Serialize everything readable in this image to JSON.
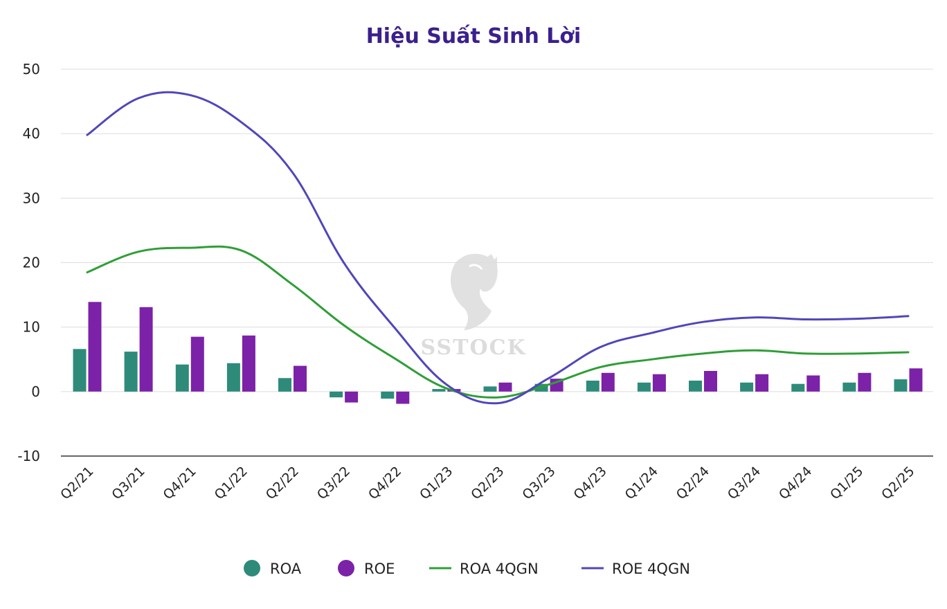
{
  "chart_data": {
    "type": "bar",
    "title": "Hiệu Suất Sinh Lời",
    "categories": [
      "Q2/21",
      "Q3/21",
      "Q4/21",
      "Q1/22",
      "Q2/22",
      "Q3/22",
      "Q4/22",
      "Q1/23",
      "Q2/23",
      "Q3/23",
      "Q4/23",
      "Q1/24",
      "Q2/24",
      "Q3/24",
      "Q4/24",
      "Q1/25",
      "Q2/25"
    ],
    "yticks": [
      50,
      40,
      30,
      20,
      10,
      0,
      -10
    ],
    "ylim": [
      -10,
      50
    ],
    "grid": true,
    "legend_position": "bottom",
    "series": [
      {
        "name": "ROA",
        "type": "bar",
        "color": "#2e8b7a",
        "values": [
          6.6,
          6.2,
          4.2,
          4.4,
          2.1,
          -0.9,
          -1.1,
          0.4,
          0.8,
          1.2,
          1.7,
          1.4,
          1.7,
          1.4,
          1.2,
          1.4,
          1.9
        ]
      },
      {
        "name": "ROE",
        "type": "bar",
        "color": "#7b22a8",
        "values": [
          13.9,
          13.1,
          8.5,
          8.7,
          4.0,
          -1.7,
          -1.9,
          0.4,
          1.4,
          2.0,
          2.9,
          2.7,
          3.2,
          2.7,
          2.5,
          2.9,
          3.6
        ]
      },
      {
        "name": "ROA 4QGN",
        "type": "line",
        "color": "#2f9e37",
        "values": [
          18.5,
          21.7,
          22.3,
          21.9,
          16.6,
          10.3,
          5.1,
          0.5,
          -0.9,
          1.1,
          3.8,
          5.0,
          5.9,
          6.4,
          5.9,
          5.9,
          6.1
        ]
      },
      {
        "name": "ROE 4QGN",
        "type": "line",
        "color": "#5046bb",
        "values": [
          39.8,
          45.5,
          46.0,
          41.8,
          34.0,
          20.0,
          9.8,
          1.1,
          -1.8,
          2.1,
          6.9,
          9.1,
          10.8,
          11.5,
          11.2,
          11.3,
          11.7
        ]
      }
    ],
    "watermark": "SSTOCK"
  }
}
